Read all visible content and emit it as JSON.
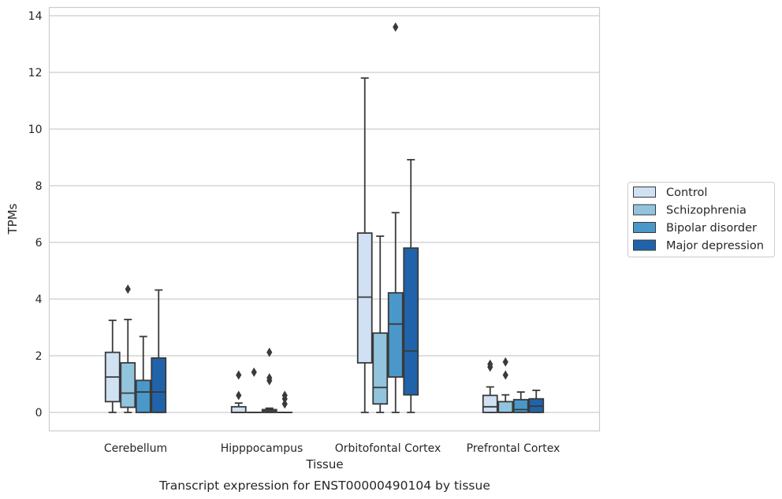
{
  "chart_data": {
    "type": "boxplot",
    "title": "Transcript expression for ENST00000490104 by tissue",
    "xlabel": "Tissue",
    "ylabel": "TPMs",
    "ylim": [
      -0.65,
      14.3
    ],
    "yticks": [
      0,
      2,
      4,
      6,
      8,
      10,
      12,
      14
    ],
    "grid": true,
    "legend_position": "right",
    "categories": [
      "Cerebellum",
      "Hipppocampus",
      "Orbitofontal Cortex",
      "Prefrontal Cortex"
    ],
    "series": [
      {
        "name": "Control",
        "color": "#cfe1f2",
        "boxes": [
          {
            "min": 0.0,
            "q1": 0.38,
            "median": 1.25,
            "q3": 2.12,
            "max": 3.25,
            "outliers": []
          },
          {
            "min": 0.0,
            "q1": 0.0,
            "median": 0.0,
            "q3": 0.2,
            "max": 0.33,
            "outliers": [
              0.6,
              1.32
            ]
          },
          {
            "min": 0.0,
            "q1": 1.75,
            "median": 4.07,
            "q3": 6.33,
            "max": 11.8,
            "outliers": []
          },
          {
            "min": 0.0,
            "q1": 0.0,
            "median": 0.2,
            "q3": 0.6,
            "max": 0.9,
            "outliers": [
              1.6,
              1.7
            ]
          }
        ]
      },
      {
        "name": "Schizophrenia",
        "color": "#93c4de",
        "boxes": [
          {
            "min": 0.0,
            "q1": 0.18,
            "median": 0.68,
            "q3": 1.75,
            "max": 3.28,
            "outliers": [
              4.35
            ]
          },
          {
            "min": 0.0,
            "q1": 0.0,
            "median": 0.0,
            "q3": 0.0,
            "max": 0.0,
            "outliers": [
              1.42
            ]
          },
          {
            "min": 0.0,
            "q1": 0.3,
            "median": 0.88,
            "q3": 2.8,
            "max": 6.22,
            "outliers": []
          },
          {
            "min": 0.0,
            "q1": 0.0,
            "median": 0.0,
            "q3": 0.38,
            "max": 0.62,
            "outliers": [
              1.32,
              1.78
            ]
          }
        ]
      },
      {
        "name": "Bipolar disorder",
        "color": "#4a98c9",
        "boxes": [
          {
            "min": 0.0,
            "q1": 0.0,
            "median": 0.72,
            "q3": 1.13,
            "max": 2.68,
            "outliers": []
          },
          {
            "min": 0.0,
            "q1": 0.0,
            "median": 0.05,
            "q3": 0.1,
            "max": 0.15,
            "outliers": [
              1.12,
              1.22,
              2.12
            ]
          },
          {
            "min": 0.0,
            "q1": 1.25,
            "median": 3.12,
            "q3": 4.22,
            "max": 7.05,
            "outliers": [
              13.6
            ]
          },
          {
            "min": 0.0,
            "q1": 0.0,
            "median": 0.1,
            "q3": 0.45,
            "max": 0.72,
            "outliers": []
          }
        ]
      },
      {
        "name": "Major depression",
        "color": "#2163aa",
        "boxes": [
          {
            "min": 0.0,
            "q1": 0.0,
            "median": 0.72,
            "q3": 1.92,
            "max": 4.32,
            "outliers": []
          },
          {
            "min": 0.0,
            "q1": 0.0,
            "median": 0.0,
            "q3": 0.0,
            "max": 0.0,
            "outliers": [
              0.3,
              0.48,
              0.6
            ]
          },
          {
            "min": 0.0,
            "q1": 0.62,
            "median": 2.17,
            "q3": 5.8,
            "max": 8.92,
            "outliers": []
          },
          {
            "min": 0.0,
            "q1": 0.0,
            "median": 0.22,
            "q3": 0.48,
            "max": 0.78,
            "outliers": []
          }
        ]
      }
    ]
  },
  "colors": {
    "axes_edge": "#cccccc",
    "grid": "#cccccc",
    "box_edge": "#3a3a3a",
    "text": "#262626"
  }
}
